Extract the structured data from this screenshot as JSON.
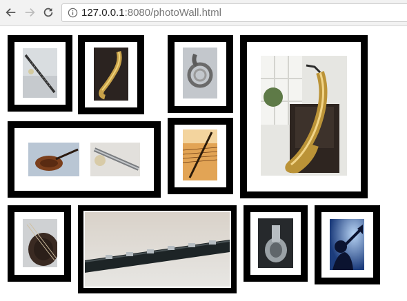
{
  "browser": {
    "url_host": "127.0.0.1",
    "url_rest": ":8080/photoWall.html"
  },
  "photos": [
    {
      "name": "clarinet-on-sheet-music"
    },
    {
      "name": "saxophone-dark"
    },
    {
      "name": "french-horn"
    },
    {
      "name": "saxophone-on-chair"
    },
    {
      "name": "violin-and-flute"
    },
    {
      "name": "sheet-music-quill"
    },
    {
      "name": "cello-closeup"
    },
    {
      "name": "clarinet-closeup"
    },
    {
      "name": "tuba"
    },
    {
      "name": "trumpet-silhouette"
    }
  ],
  "colors": {
    "frame": "#000000",
    "mat": "#ffffff",
    "chrome": "#f2f2f2"
  }
}
